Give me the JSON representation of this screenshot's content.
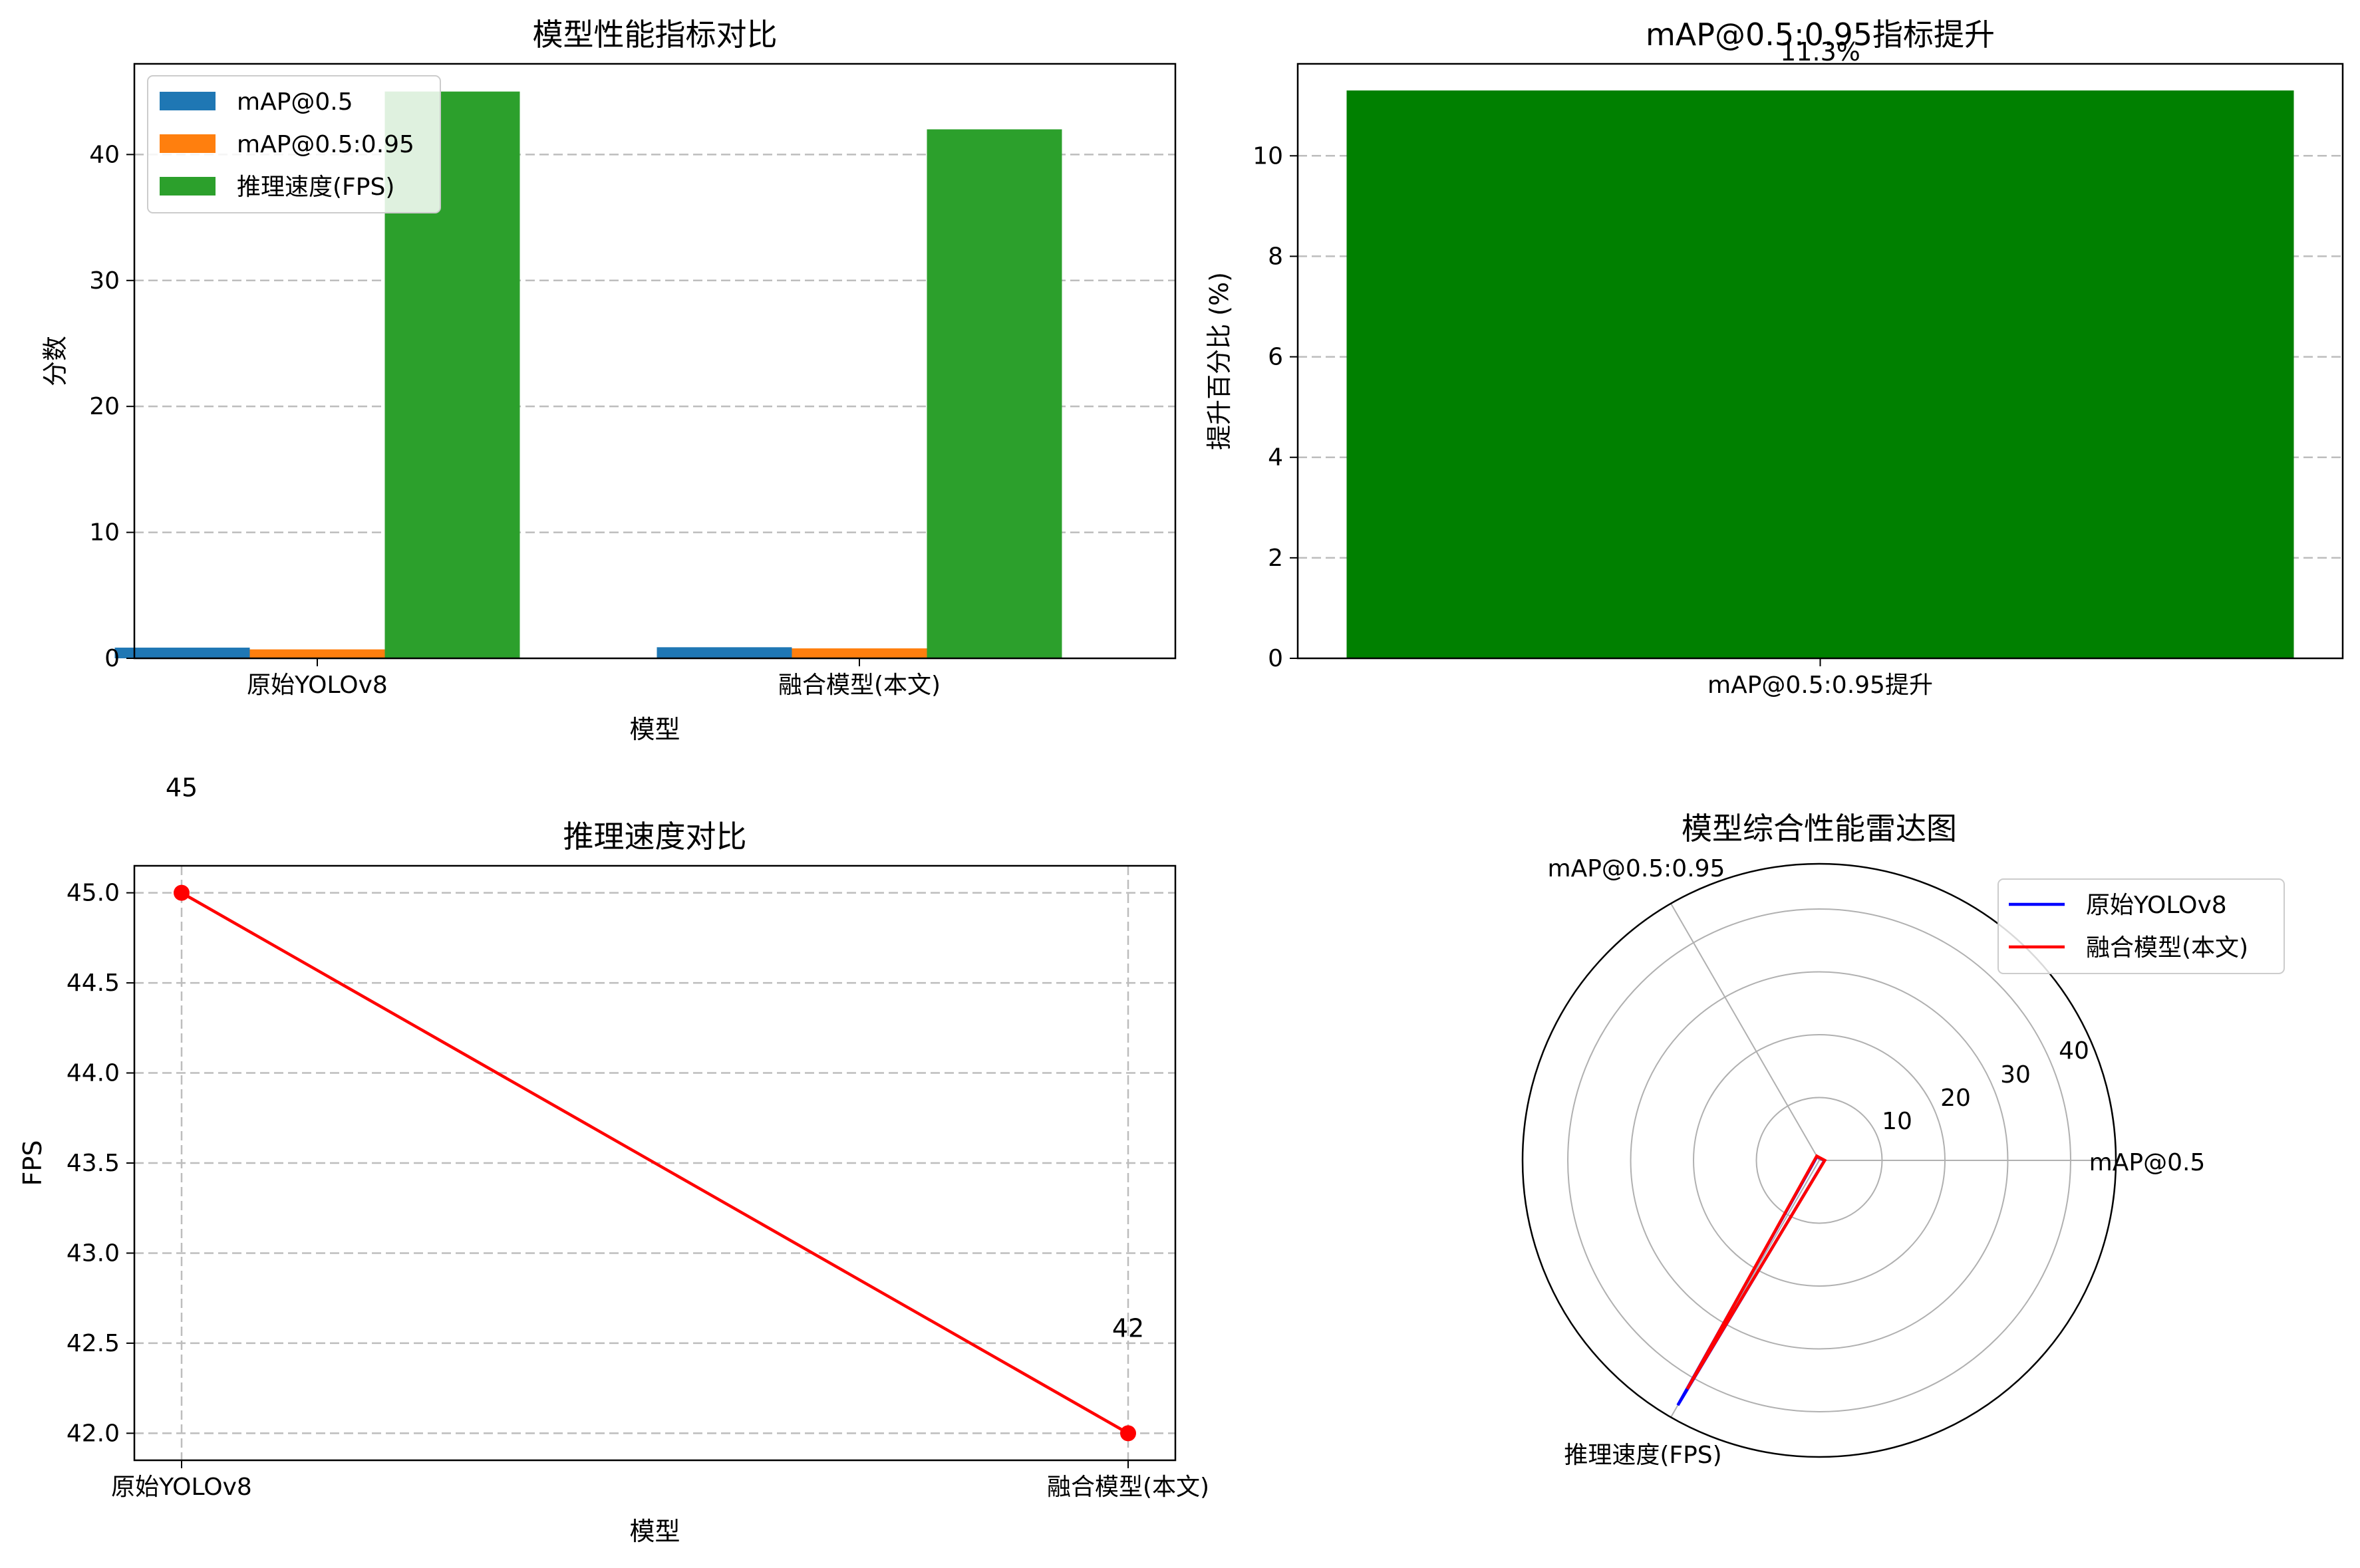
{
  "chart_data": [
    {
      "type": "bar",
      "title": "模型性能指标对比",
      "xlabel": "模型",
      "ylabel": "分数",
      "categories": [
        "原始YOLOv8",
        "融合模型(本文)"
      ],
      "series": [
        {
          "name": "mAP@0.5",
          "values": [
            0.85,
            0.88
          ],
          "color": "#1f77b4"
        },
        {
          "name": "mAP@0.5:0.95",
          "values": [
            0.71,
            0.79
          ],
          "color": "#ff7f0e"
        },
        {
          "name": "推理速度(FPS)",
          "values": [
            45,
            42
          ],
          "color": "#2ca02c"
        }
      ],
      "ylim": [
        0,
        47.2
      ],
      "yticks": [
        0,
        10,
        20,
        30,
        40
      ],
      "grid": "y-dashed",
      "legend": "upper left"
    },
    {
      "type": "bar",
      "title": "mAP@0.5:0.95指标提升",
      "xlabel": "",
      "ylabel": "提升百分比 (%)",
      "categories": [
        "mAP@0.5:0.95提升"
      ],
      "values": [
        11.3
      ],
      "data_labels": [
        "11.3%"
      ],
      "color": "#008000",
      "ylim": [
        0,
        11.83
      ],
      "yticks": [
        0,
        2,
        4,
        6,
        8,
        10
      ],
      "grid": "y-dashed"
    },
    {
      "type": "line",
      "title": "推理速度对比",
      "xlabel": "模型",
      "ylabel": "FPS",
      "categories": [
        "原始YOLOv8",
        "融合模型(本文)"
      ],
      "values": [
        45,
        42
      ],
      "data_labels": [
        "45",
        "42"
      ],
      "color": "#ff0000",
      "ylim": [
        41.85,
        45.15
      ],
      "yticks": [
        42.0,
        42.5,
        43.0,
        43.5,
        44.0,
        44.5,
        45.0
      ],
      "ytick_labels": [
        "42.0",
        "42.5",
        "43.0",
        "43.5",
        "44.0",
        "44.5",
        "45.0"
      ],
      "grid": "both-dashed"
    },
    {
      "type": "radar",
      "title": "模型综合性能雷达图",
      "axes": [
        "mAP@0.5",
        "mAP@0.5:0.95",
        "推理速度(FPS)"
      ],
      "series": [
        {
          "name": "原始YOLOv8",
          "values": [
            0.85,
            0.71,
            45
          ],
          "color": "#0000ff"
        },
        {
          "name": "融合模型(本文)",
          "values": [
            0.88,
            0.79,
            42
          ],
          "color": "#ff0000"
        }
      ],
      "rmax": 47.2,
      "rticks": [
        10,
        20,
        30,
        40
      ],
      "legend": "upper right"
    }
  ]
}
